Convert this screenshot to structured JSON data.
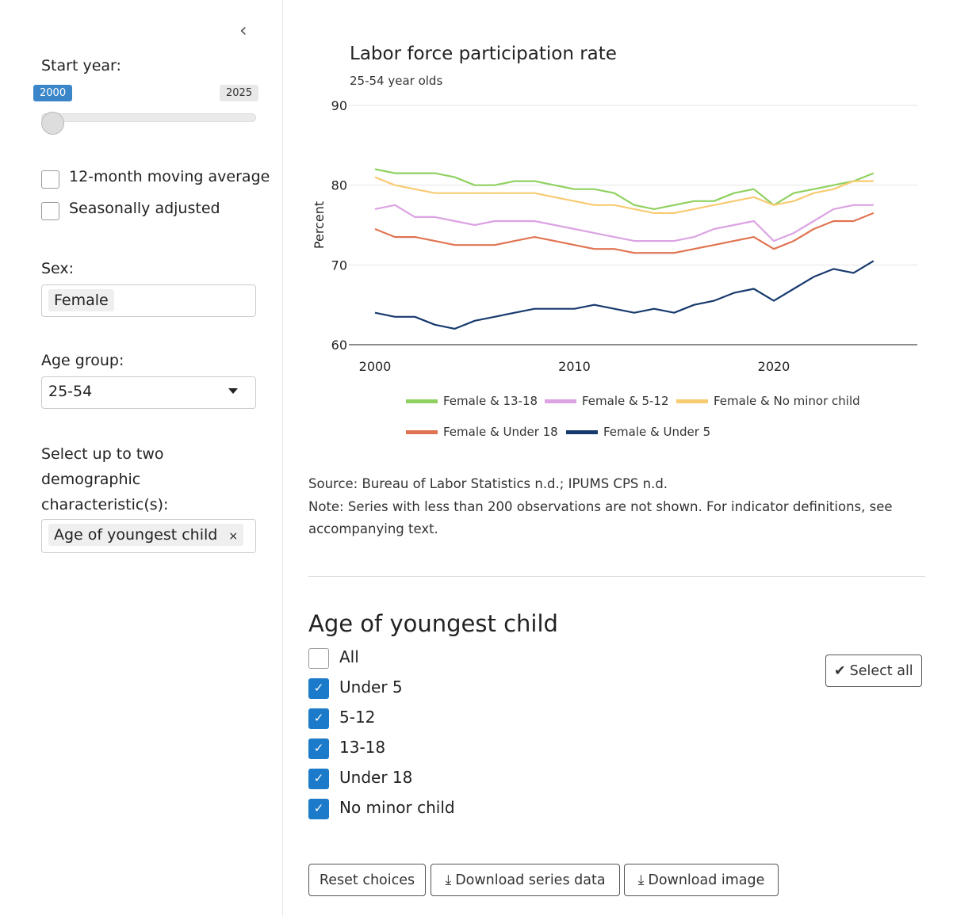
{
  "sidebar": {
    "collapse_icon": "chevron-left",
    "start_year_label": "Start year:",
    "slider_min": "2000",
    "slider_max": "2025",
    "slider_value": 2000,
    "moving_average_label": "12-month moving average",
    "moving_average_checked": false,
    "seasonally_adjusted_label": "Seasonally adjusted",
    "seasonally_adjusted_checked": false,
    "sex_label": "Sex:",
    "sex_value": "Female",
    "age_group_label": "Age group:",
    "age_group_value": "25-54",
    "demographic_label": "Select up to two demographic characteristic(s):",
    "demographic_value": "Age of youngest child",
    "remove_symbol": "×"
  },
  "chart_data": {
    "type": "line",
    "title": "Labor force participation rate",
    "subtitle": "25-54 year olds",
    "ylabel": "Percent",
    "xlabel": "",
    "ylim": [
      60,
      90
    ],
    "yticks": [
      "60",
      "70",
      "80",
      "90"
    ],
    "xticks": [
      "2000",
      "2010",
      "2020"
    ],
    "grid": true,
    "legend_position": "bottom",
    "x": [
      2000,
      2001,
      2002,
      2003,
      2004,
      2005,
      2006,
      2007,
      2008,
      2009,
      2010,
      2011,
      2012,
      2013,
      2014,
      2015,
      2016,
      2017,
      2018,
      2019,
      2020,
      2021,
      2022,
      2023,
      2024,
      2025
    ],
    "series": [
      {
        "name": "Female & 13-18",
        "color": "#8fd160",
        "values": [
          82,
          81.5,
          81.5,
          81.5,
          81,
          80,
          80,
          80.5,
          80.5,
          80,
          79.5,
          79.5,
          79,
          77.5,
          77,
          77.5,
          78,
          78,
          79,
          79.5,
          77.5,
          79,
          79.5,
          80,
          80.5,
          81.5
        ]
      },
      {
        "name": "Female & 5-12",
        "color": "#dba3e2",
        "values": [
          77,
          77.5,
          76,
          76,
          75.5,
          75,
          75.5,
          75.5,
          75.5,
          75,
          74.5,
          74,
          73.5,
          73,
          73,
          73,
          73.5,
          74.5,
          75,
          75.5,
          73,
          74,
          75.5,
          77,
          77.5,
          77.5
        ]
      },
      {
        "name": "Female & No minor child",
        "color": "#f8cb73",
        "values": [
          81,
          80,
          79.5,
          79,
          79,
          79,
          79,
          79,
          79,
          78.5,
          78,
          77.5,
          77.5,
          77,
          76.5,
          76.5,
          77,
          77.5,
          78,
          78.5,
          77.5,
          78,
          79,
          79.5,
          80.5,
          80.5
        ]
      },
      {
        "name": "Female & Under 18",
        "color": "#e07452",
        "values": [
          74.5,
          73.5,
          73.5,
          73,
          72.5,
          72.5,
          72.5,
          73,
          73.5,
          73,
          72.5,
          72,
          72,
          71.5,
          71.5,
          71.5,
          72,
          72.5,
          73,
          73.5,
          72,
          73,
          74.5,
          75.5,
          75.5,
          76.5
        ]
      },
      {
        "name": "Female & Under 5",
        "color": "#173a6e",
        "values": [
          64,
          63.5,
          63.5,
          62.5,
          62,
          63,
          63.5,
          64,
          64.5,
          64.5,
          64.5,
          65,
          64.5,
          64,
          64.5,
          64,
          65,
          65.5,
          66.5,
          67,
          65.5,
          67,
          68.5,
          69.5,
          69,
          70.5
        ]
      }
    ]
  },
  "notes": {
    "source": "Source: Bureau of Labor Statistics n.d.; IPUMS CPS n.d.",
    "note_line1": "Note: Series with less than 200 observations are not shown. For indicator definitions, see",
    "note_line2": "accompanying text."
  },
  "section": {
    "title": "Age of youngest child",
    "select_all_label": "Select all",
    "options": [
      {
        "label": "All",
        "checked": false
      },
      {
        "label": "Under 5",
        "checked": true
      },
      {
        "label": "5-12",
        "checked": true
      },
      {
        "label": "13-18",
        "checked": true
      },
      {
        "label": "Under 18",
        "checked": true
      },
      {
        "label": "No minor child",
        "checked": true
      }
    ]
  },
  "buttons": {
    "reset": "Reset choices",
    "download_data": "Download series data",
    "download_image": "Download image"
  },
  "colors": {
    "accent": "#1b7ac9"
  }
}
